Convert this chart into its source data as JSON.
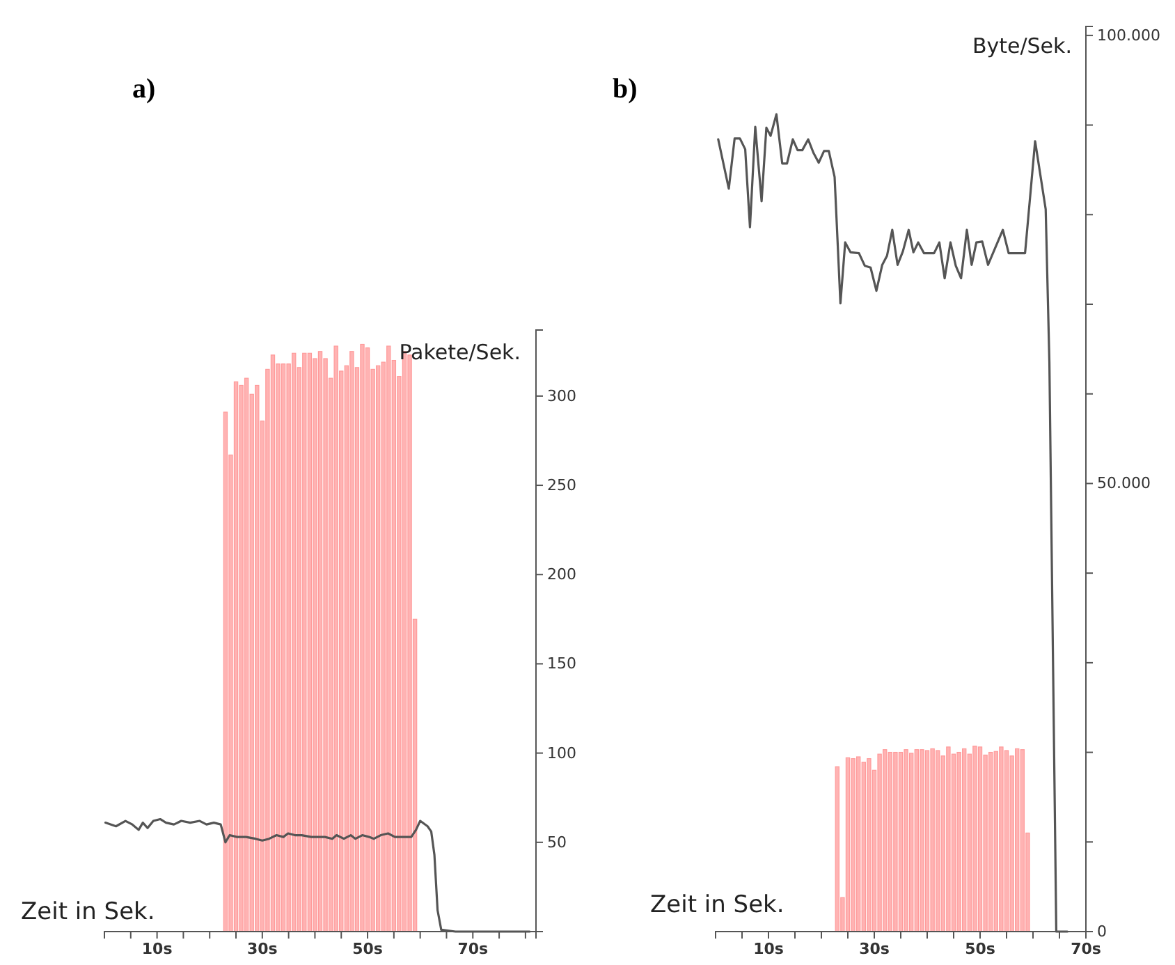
{
  "chart_data": [
    {
      "type": "bar",
      "title": "a)",
      "xlabel": "Zeit in Sek.",
      "ylabel": "Pakete/Sek.",
      "xlim": [
        0,
        82
      ],
      "ylim": [
        0,
        337
      ],
      "xticks": [
        {
          "value": 0,
          "label": null
        },
        {
          "value": 5,
          "label": null
        },
        {
          "value": 10,
          "label": "10s"
        },
        {
          "value": 15,
          "label": null
        },
        {
          "value": 20,
          "label": null
        },
        {
          "value": 25,
          "label": null
        },
        {
          "value": 30,
          "label": "30s"
        },
        {
          "value": 35,
          "label": null
        },
        {
          "value": 40,
          "label": null
        },
        {
          "value": 45,
          "label": null
        },
        {
          "value": 50,
          "label": "50s"
        },
        {
          "value": 55,
          "label": null
        },
        {
          "value": 60,
          "label": null
        },
        {
          "value": 65,
          "label": null
        },
        {
          "value": 70,
          "label": "70s"
        },
        {
          "value": 75,
          "label": null
        },
        {
          "value": 80,
          "label": null
        }
      ],
      "yticks": [
        50,
        100,
        150,
        200,
        250,
        300
      ],
      "grid": false,
      "series": [
        {
          "color": "#ff9a9a",
          "x": [
            23,
            24,
            25,
            26,
            27,
            28,
            29,
            30,
            31,
            32,
            33,
            34,
            35,
            36,
            37,
            38,
            39,
            40,
            41,
            42,
            43,
            44,
            45,
            46,
            47,
            48,
            49,
            50,
            51,
            52,
            53,
            54,
            55,
            56,
            57,
            58,
            59
          ],
          "values": [
            291,
            267,
            308,
            306,
            310,
            301,
            306,
            286,
            315,
            323,
            318,
            318,
            318,
            324,
            316,
            324,
            324,
            321,
            325,
            321,
            310,
            328,
            314,
            317,
            325,
            316,
            329,
            327,
            315,
            317,
            319,
            328,
            320,
            311,
            325,
            323,
            175
          ]
        },
        {
          "type": "line",
          "color": "#555555",
          "x": [
            0.2,
            2.2,
            4,
            5.3,
            6.5,
            7.3,
            8.2,
            9.3,
            10.6,
            11.7,
            13.2,
            14.6,
            16.3,
            18.1,
            19.4,
            20.8,
            22.1,
            23,
            23.8,
            25.2,
            26.9,
            28.7,
            30,
            31.3,
            32.7,
            34,
            34.9,
            36.2,
            37.5,
            39.3,
            41.1,
            41.9,
            43.3,
            44.1,
            45.5,
            46.8,
            47.7,
            49,
            50.3,
            51.2,
            52.5,
            53.9,
            55.2,
            56.9,
            58.3,
            59.2,
            60,
            61.4,
            62.1,
            62.7,
            63.3,
            64,
            66.7,
            80.8
          ],
          "values": [
            61,
            59,
            62,
            60,
            57,
            61,
            58,
            62,
            63,
            61,
            60,
            62,
            61,
            62,
            60,
            61,
            60,
            50,
            54,
            53,
            53,
            52,
            51,
            52,
            54,
            53,
            55,
            54,
            54,
            53,
            53,
            53,
            52,
            54,
            52,
            54,
            52,
            54,
            53,
            52,
            54,
            55,
            53,
            53,
            53,
            57,
            62,
            59,
            56,
            43,
            12,
            1,
            0,
            0
          ]
        }
      ]
    },
    {
      "type": "bar",
      "title": "b)",
      "xlabel": "Zeit in Sek.",
      "ylabel": "Byte/Sek.",
      "xlim": [
        0,
        70
      ],
      "ylim": [
        0,
        101000
      ],
      "xticks": [
        {
          "value": 0,
          "label": null
        },
        {
          "value": 5,
          "label": null
        },
        {
          "value": 10,
          "label": "10s"
        },
        {
          "value": 15,
          "label": null
        },
        {
          "value": 20,
          "label": null
        },
        {
          "value": 25,
          "label": null
        },
        {
          "value": 30,
          "label": "30s"
        },
        {
          "value": 35,
          "label": null
        },
        {
          "value": 40,
          "label": null
        },
        {
          "value": 45,
          "label": null
        },
        {
          "value": 50,
          "label": "50s"
        },
        {
          "value": 55,
          "label": null
        },
        {
          "value": 60,
          "label": null
        },
        {
          "value": 65,
          "label": null
        },
        {
          "value": 70,
          "label": "70s"
        }
      ],
      "yticks": [
        0,
        {
          "value": 10000,
          "label": null
        },
        {
          "value": 20000,
          "label": null
        },
        {
          "value": 30000,
          "label": null
        },
        {
          "value": 40000,
          "label": null
        },
        {
          "value": 50000,
          "label": "50.000"
        },
        {
          "value": 60000,
          "label": null
        },
        {
          "value": 70000,
          "label": null
        },
        {
          "value": 80000,
          "label": null
        },
        {
          "value": 90000,
          "label": null
        },
        {
          "value": 100000,
          "label": "100.000"
        }
      ],
      "grid": false,
      "series": [
        {
          "color": "#ff9a9a",
          "x": [
            23,
            24,
            25,
            26,
            27,
            28,
            29,
            30,
            31,
            32,
            33,
            34,
            35,
            36,
            37,
            38,
            39,
            40,
            41,
            42,
            43,
            44,
            45,
            46,
            47,
            48,
            49,
            50,
            51,
            52,
            53,
            54,
            55,
            56,
            57,
            58,
            59
          ],
          "values": [
            18400,
            3800,
            19400,
            19300,
            19500,
            18900,
            19300,
            18000,
            19800,
            20300,
            20000,
            20000,
            20000,
            20300,
            19900,
            20300,
            20300,
            20200,
            20400,
            20200,
            19600,
            20600,
            19800,
            20000,
            20400,
            19800,
            20700,
            20600,
            19700,
            20000,
            20100,
            20600,
            20200,
            19600,
            20400,
            20300,
            11000
          ]
        },
        {
          "type": "line",
          "color": "#555555",
          "x": [
            0.5,
            2.5,
            3.6,
            4.6,
            5.6,
            6.5,
            7.5,
            8.7,
            9.6,
            10.4,
            11.5,
            12.6,
            13.5,
            14.6,
            15.5,
            16.4,
            17.5,
            18.5,
            19.5,
            20.5,
            21.4,
            22.5,
            23.6,
            24.5,
            25.5,
            27.1,
            28.2,
            29.3,
            30.4,
            31.5,
            32.4,
            33.4,
            34.4,
            35.4,
            36.5,
            37.4,
            38.3,
            39.4,
            41.3,
            42.3,
            43.3,
            44.4,
            45.4,
            46.4,
            47.5,
            48.4,
            49.3,
            50.4,
            51.5,
            54.3,
            55.4,
            58.5,
            60.4,
            62.4,
            63.1,
            64.4,
            66.5
          ],
          "values": [
            88400,
            82900,
            88500,
            88500,
            87300,
            78600,
            89800,
            81500,
            89700,
            88800,
            91200,
            85700,
            85700,
            88400,
            87200,
            87200,
            88400,
            86900,
            85800,
            87100,
            87100,
            84200,
            70100,
            76900,
            75800,
            75700,
            74300,
            74100,
            71500,
            74400,
            75400,
            78300,
            74400,
            75900,
            78300,
            75800,
            76900,
            75700,
            75700,
            76900,
            72900,
            76900,
            74300,
            72900,
            78300,
            74400,
            76900,
            77000,
            74400,
            78300,
            75700,
            75700,
            88200,
            80600,
            63500,
            0,
            0
          ]
        }
      ]
    }
  ]
}
